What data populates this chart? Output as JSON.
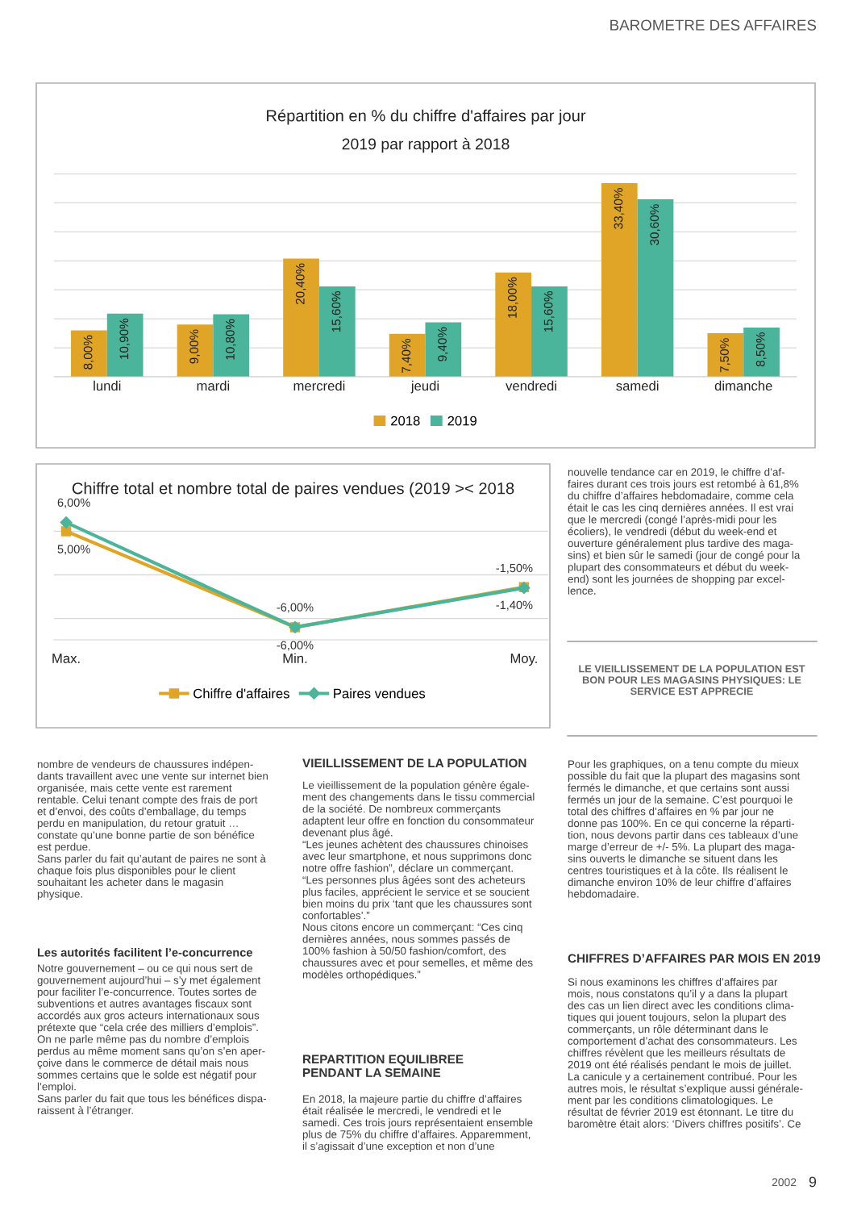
{
  "chart_data": [
    {
      "type": "bar",
      "title": "Répartition en % du chiffre d'affaires par jour",
      "subtitle": "2019 par rapport à 2018",
      "categories": [
        "lundi",
        "mardi",
        "mercredi",
        "jeudi",
        "vendredi",
        "samedi",
        "dimanche"
      ],
      "series": [
        {
          "name": "2018",
          "color": "#e0a526",
          "values": [
            8.0,
            9.0,
            20.4,
            7.4,
            18.0,
            33.4,
            7.5
          ],
          "value_labels": [
            "8,00%",
            "9,00%",
            "20,40%",
            "7,40%",
            "18,00%",
            "33,40%",
            "7,50%"
          ]
        },
        {
          "name": "2019",
          "color": "#4ab59a",
          "values": [
            10.9,
            10.8,
            15.6,
            9.4,
            15.6,
            30.6,
            8.5
          ],
          "value_labels": [
            "10,90%",
            "10,80%",
            "15,60%",
            "9,40%",
            "15,60%",
            "30,60%",
            "8,50%"
          ]
        }
      ],
      "grid": "y",
      "legend": "bottom",
      "tick_labels": "x"
    },
    {
      "type": "line",
      "title": "Chiffre total et nombre total de paires vendues (2019 >< 2018",
      "categories": [
        "Max.",
        "Min.",
        "Moy."
      ],
      "series": [
        {
          "name": "Chiffre d'affaires",
          "color": "#e0a526",
          "marker": "square",
          "values": [
            5.0,
            -6.0,
            -1.4
          ],
          "value_labels": [
            "5,00%",
            "-6,00%",
            "-1,40%"
          ]
        },
        {
          "name": "Paires vendues",
          "color": "#4ab59a",
          "marker": "diamond",
          "values": [
            6.0,
            -6.0,
            -1.5
          ],
          "value_labels": [
            "6,00%",
            "-6,00%",
            "-1,50%"
          ]
        }
      ],
      "grid": "y",
      "legend": "bottom",
      "tick_labels": "x",
      "line_style": "solid"
    },
    {
      "type": "other",
      "annotations": [
        "BAROMETRE DES AFFAIRES",
        "nouvelle tendance car en 2019, le chiffre d’af-\nfaires durant ces trois jours est retombé à 61,8%\ndu chiffre d’affaires hebdomadaire, comme cela\nétait le cas les cinq dernières années. Il est vrai\nque le mercredi (congé l’après-midi pour les\nécoliers), le vendredi (début du week-end et\nouverture généralement plus tardive des maga-\nsins) et bien sûr le samedi (jour de congé pour la\nplupart des consommateurs et début du week-\nend) sont les journées de shopping par excel-\nlence.",
        "LE VIEILLISSEMENT DE LA POPULATION EST\nBON POUR LES MAGASINS PHYSIQUES: LE\nSERVICE EST APPRECIE",
        "nombre de vendeurs de chaussures indépen-\ndants travaillent avec une vente sur internet bien\norganisée, mais cette vente est rarement\nrentable. Celui tenant compte des frais de port\net d’envoi, des coûts d’emballage, du temps\nperdu en manipulation, du retour gratuit …\nconstate qu’une bonne partie de son bénéfice\nest perdue.\nSans parler du fait qu’autant de paires ne sont à\nchaque fois plus disponibles pour le client\nsouhaitant les acheter dans le magasin\nphysique.",
        "Les autorités facilitent l’e-concurrence",
        "Notre gouvernement – ou ce qui nous sert de\ngouvernement aujourd’hui – s’y met également\npour faciliter l’e-concurrence. Toutes sortes de\nsubventions et autres avantages fiscaux sont\naccordés aux gros acteurs internationaux sous\nprétexte que “cela crée des milliers d’emplois”.\nOn ne parle même pas du nombre d’emplois\nperdus au même moment sans qu’on s’en aper-\nçoive dans le commerce de détail mais nous\nsommes certains que le solde est négatif pour\nl’emploi.\nSans parler du fait que tous les bénéfices dispa-\nraissent à l’étranger.",
        "VIEILLISSEMENT DE LA POPULATION",
        "Le vieillissement de la population génère égale-\nment des changements dans le tissu commercial\nde la société. De nombreux commerçants\nadaptent leur offre en fonction du consommateur\ndevenant plus âgé.\n“Les jeunes achètent des chaussures chinoises\navec leur smartphone, et nous supprimons donc\nnotre offre fashion”, déclare un commerçant.\n“Les personnes plus âgées sont des acheteurs\nplus faciles, apprécient le service et se soucient\nbien moins du prix ‘tant que les chaussures sont\nconfortables’.”\nNous citons encore un commerçant: “Ces cinq\ndernières années, nous sommes passés de\n100% fashion à 50/50 fashion/comfort, des\nchaussures avec et pour semelles, et même des\nmodèles orthopédiques.”",
        "REPARTITION EQUILIBREE\nPENDANT LA SEMAINE",
        "En 2018, la majeure partie du chiffre d’affaires\nétait réalisée le mercredi, le vendredi et le\nsamedi. Ces trois jours représentaient ensemble\nplus de 75% du chiffre d’affaires. Apparemment,\nil s’agissait d’une exception et non d’une",
        "Pour les graphiques, on a tenu compte du mieux\npossible du fait que la plupart des magasins sont\nfermés le dimanche, et que certains sont aussi\nfermés un jour de la semaine. C’est pourquoi le\ntotal des chiffres d’affaires en % par jour ne\ndonne pas 100%. En ce qui concerne la réparti-\ntion, nous devons partir dans ces tableaux d’une\nmarge d’erreur de +/- 5%. La plupart des maga-\nsins ouverts le dimanche se situent dans les\ncentres touristiques et à la côte. Ils réalisent le\ndimanche environ 10% de leur chiffre d’affaires\nhebdomadaire.",
        "CHIFFRES D’AFFAIRES PAR MOIS EN 2019",
        "Si nous examinons les chiffres d’affaires par\nmois, nous constatons qu’il y a dans la plupart\ndes cas un lien direct avec les conditions clima-\ntiques qui jouent toujours, selon la plupart des\ncommerçants, un rôle déterminant dans le\ncomportement d’achat des consommateurs. Les\nchiffres révèlent que les meilleurs résultats de\n2019 ont été réalisés pendant le mois de juillet.\nLa canicule y a certainement contribué. Pour les\nautres mois, le résultat s’explique aussi générale-\nment par les conditions climatologiques. Le\nrésultat de février 2019 est étonnant. Le titre du\nbaromètre était alors: ‘Divers chiffres positifs’. Ce",
        "2002",
        "9"
      ]
    }
  ]
}
